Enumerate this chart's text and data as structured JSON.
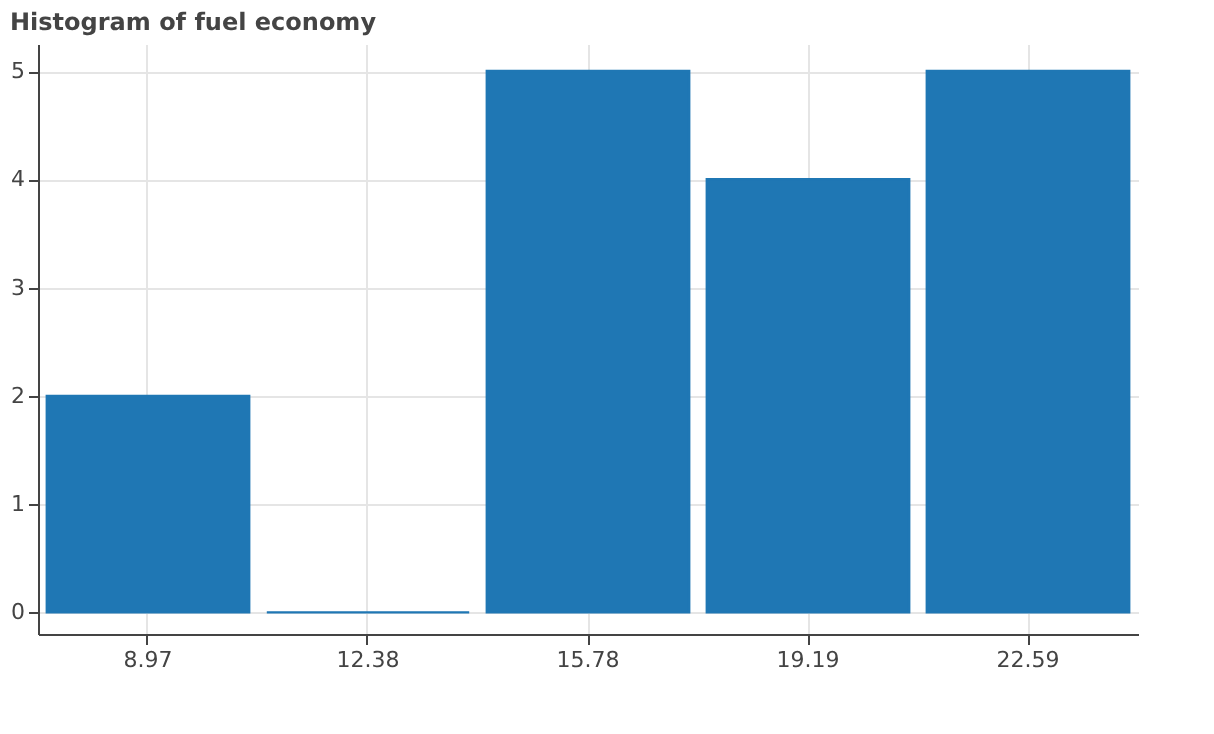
{
  "chart_data": {
    "type": "bar",
    "title": "Histogram of fuel economy",
    "categories": [
      "8.97",
      "12.38",
      "15.78",
      "19.19",
      "22.59"
    ],
    "values": [
      2,
      0,
      5,
      4,
      5
    ],
    "color": "#1f77b4",
    "ylim": [
      -0.2,
      5.25
    ],
    "yticks": [
      0,
      1,
      2,
      3,
      4,
      5
    ],
    "grid": true
  }
}
